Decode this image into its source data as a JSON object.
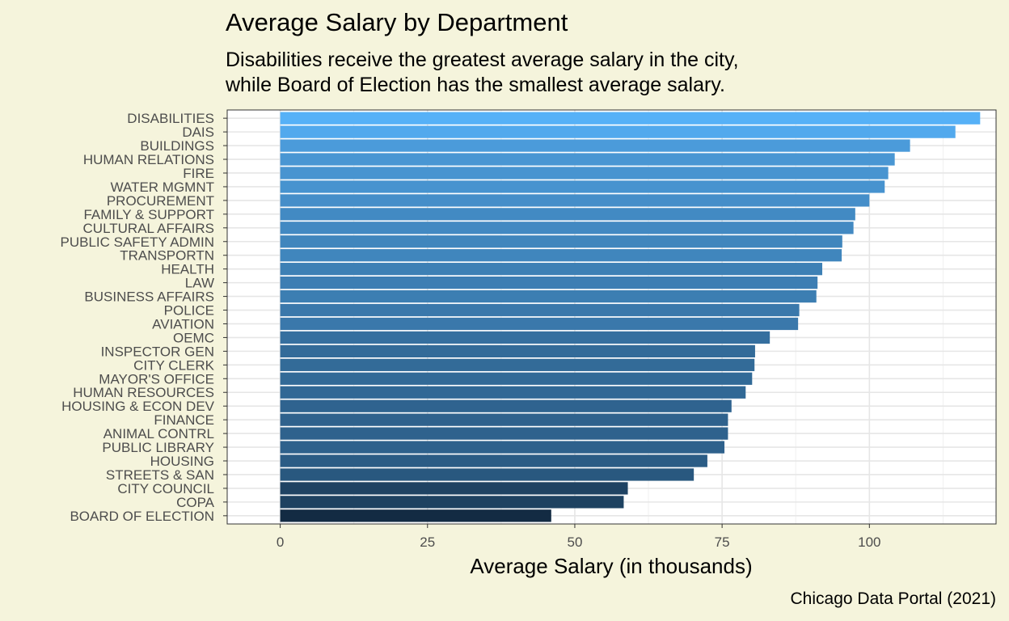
{
  "chart_data": {
    "type": "bar",
    "orientation": "horizontal",
    "title": "Average Salary by Department",
    "subtitle": [
      "Disabilities receive the greatest average salary in the city,",
      "while Board of Election has the smallest average salary."
    ],
    "xlabel": "Average Salary (in thousands)",
    "ylabel": "",
    "caption": "Chicago Data Portal (2021)",
    "xlim": [
      -9,
      121.5
    ],
    "xticks": [
      0,
      25,
      50,
      75,
      100
    ],
    "grid": true,
    "color_low": "#132b43",
    "color_high": "#56b1f7",
    "categories": [
      "DISABILITIES",
      "DAIS",
      "BUILDINGS",
      "HUMAN RELATIONS",
      "FIRE",
      "WATER MGMNT",
      "PROCUREMENT",
      "FAMILY & SUPPORT",
      "CULTURAL AFFAIRS",
      "PUBLIC SAFETY ADMIN",
      "TRANSPORTN",
      "HEALTH",
      "LAW",
      "BUSINESS AFFAIRS",
      "POLICE",
      "AVIATION",
      "OEMC",
      "INSPECTOR GEN",
      "CITY CLERK",
      "MAYOR'S OFFICE",
      "HUMAN RESOURCES",
      "HOUSING & ECON DEV",
      "FINANCE",
      "ANIMAL CONTRL",
      "PUBLIC LIBRARY",
      "HOUSING",
      "STREETS & SAN",
      "CITY COUNCIL",
      "COPA",
      "BOARD OF ELECTION"
    ],
    "values": [
      118.8,
      114.6,
      106.9,
      104.3,
      103.2,
      102.6,
      100.0,
      97.6,
      97.3,
      95.4,
      95.3,
      92.0,
      91.2,
      91.0,
      88.1,
      87.9,
      83.1,
      80.6,
      80.5,
      80.1,
      79.0,
      76.6,
      76.0,
      76.0,
      75.4,
      72.5,
      70.2,
      59.0,
      58.3,
      46.0
    ]
  }
}
